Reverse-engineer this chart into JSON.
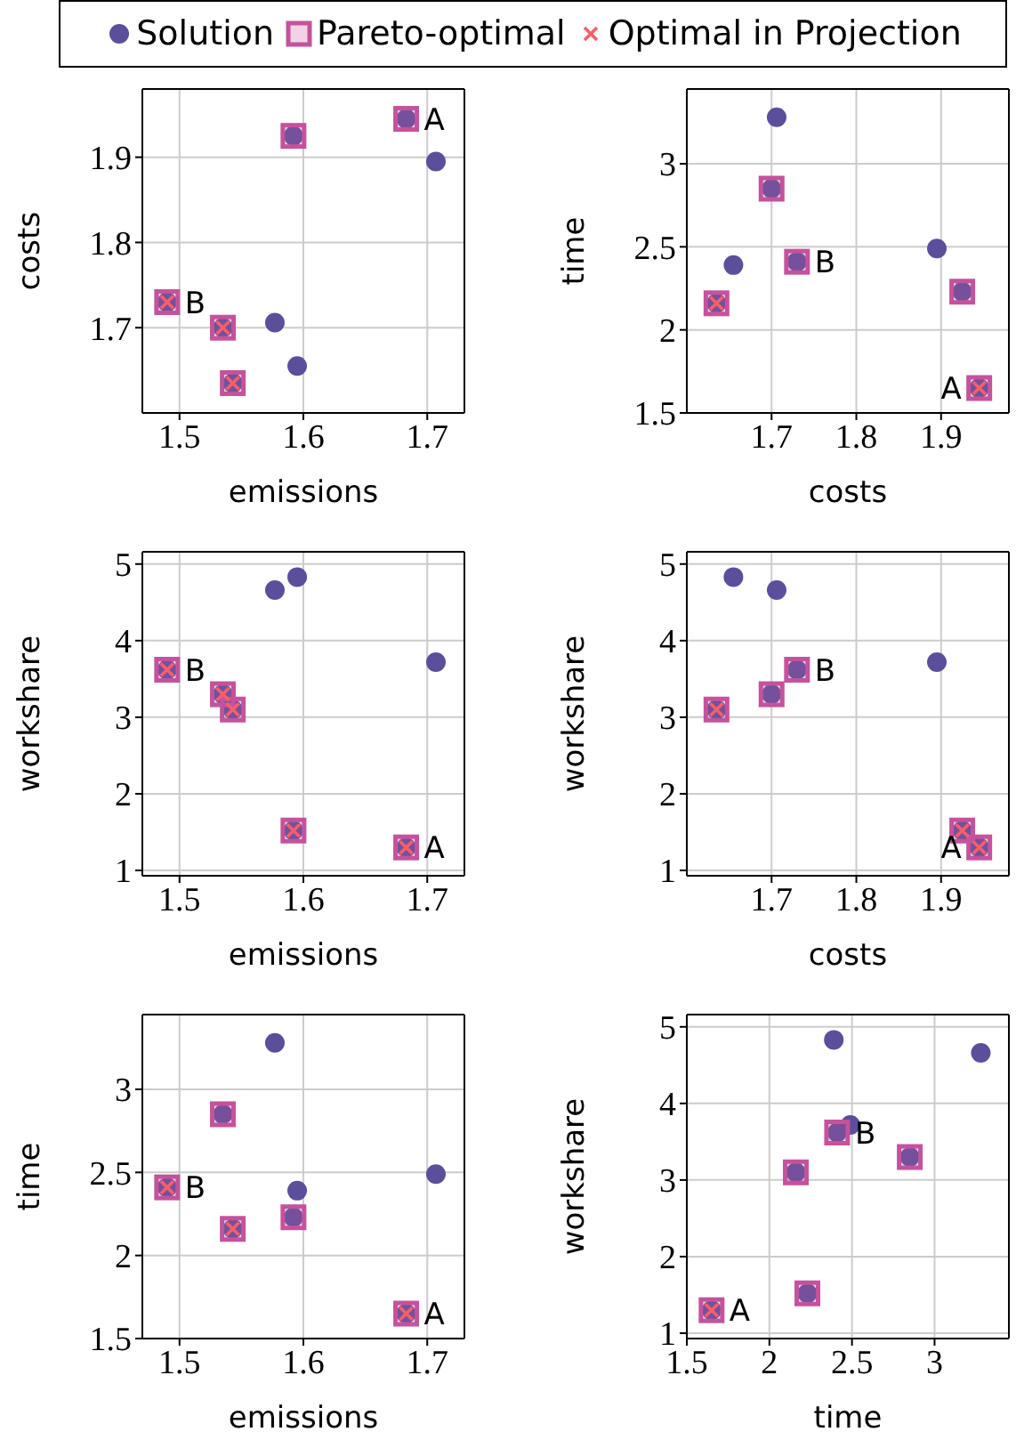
{
  "chart_data": [
    {
      "type": "scatter",
      "xlabel": "emissions",
      "ylabel": "costs",
      "xlim": [
        1.47,
        1.73
      ],
      "xticks": [
        1.5,
        1.6,
        1.7
      ],
      "ylim": [
        1.6,
        1.98
      ],
      "yticks": [
        1.7,
        1.8,
        1.9
      ],
      "grid": true,
      "legend": "top",
      "series": [
        {
          "name": "Solution",
          "color": "#5b4f9b",
          "marker": "circle",
          "x": [
            1.683,
            1.49,
            1.535,
            1.543,
            1.592,
            1.577,
            1.595,
            1.707
          ],
          "values": [
            1.945,
            1.73,
            1.7,
            1.635,
            1.925,
            1.706,
            1.655,
            1.895
          ]
        },
        {
          "name": "Pareto-optimal",
          "color": "#c4529c",
          "marker": "square",
          "x": [
            1.683,
            1.49,
            1.535,
            1.543,
            1.592
          ],
          "values": [
            1.945,
            1.73,
            1.7,
            1.635,
            1.925
          ]
        },
        {
          "name": "Optimal in Projection",
          "color": "#f55f6a",
          "marker": "cross",
          "x": [
            1.49,
            1.535,
            1.543
          ],
          "values": [
            1.73,
            1.7,
            1.635
          ]
        }
      ],
      "annotations": [
        {
          "text": "A",
          "x": 1.683,
          "y": 1.945
        },
        {
          "text": "B",
          "x": 1.49,
          "y": 1.73
        }
      ]
    },
    {
      "type": "scatter",
      "xlabel": "costs",
      "ylabel": "time",
      "xlim": [
        1.6,
        1.98
      ],
      "xticks": [
        1.7,
        1.8,
        1.9
      ],
      "ylim": [
        1.5,
        3.45
      ],
      "yticks": [
        1.5,
        2,
        2.5,
        3
      ],
      "grid": true,
      "series": [
        {
          "color": "#5b4f9b",
          "marker": "circle",
          "x": [
            1.945,
            1.73,
            1.7,
            1.635,
            1.925,
            1.706,
            1.655,
            1.895
          ],
          "values": [
            1.65,
            2.41,
            2.85,
            2.16,
            2.23,
            3.28,
            2.39,
            2.49
          ]
        },
        {
          "color": "#c4529c",
          "marker": "square",
          "x": [
            1.945,
            1.73,
            1.7,
            1.635,
            1.925
          ],
          "values": [
            1.65,
            2.41,
            2.85,
            2.16,
            2.23
          ]
        },
        {
          "color": "#f55f6a",
          "marker": "cross",
          "x": [
            1.635,
            1.945
          ],
          "values": [
            2.16,
            1.65
          ]
        }
      ],
      "annotations": [
        {
          "text": "A",
          "x": 1.945,
          "y": 1.65
        },
        {
          "text": "B",
          "x": 1.73,
          "y": 2.41
        }
      ]
    },
    {
      "type": "scatter",
      "xlabel": "emissions",
      "ylabel": "workshare",
      "xlim": [
        1.47,
        1.73
      ],
      "xticks": [
        1.5,
        1.6,
        1.7
      ],
      "ylim": [
        0.93,
        5.16
      ],
      "yticks": [
        1,
        2,
        3,
        4,
        5
      ],
      "grid": true,
      "series": [
        {
          "color": "#5b4f9b",
          "marker": "circle",
          "x": [
            1.683,
            1.49,
            1.535,
            1.543,
            1.592,
            1.577,
            1.595,
            1.707
          ],
          "values": [
            1.3,
            3.62,
            3.3,
            3.1,
            1.52,
            4.66,
            4.83,
            3.72
          ]
        },
        {
          "color": "#c4529c",
          "marker": "square",
          "x": [
            1.683,
            1.49,
            1.535,
            1.543,
            1.592
          ],
          "values": [
            1.3,
            3.62,
            3.3,
            3.1,
            1.52
          ]
        },
        {
          "color": "#f55f6a",
          "marker": "cross",
          "x": [
            1.683,
            1.49,
            1.535,
            1.543,
            1.592
          ],
          "values": [
            1.3,
            3.62,
            3.3,
            3.1,
            1.52
          ]
        }
      ],
      "annotations": [
        {
          "text": "A",
          "x": 1.683,
          "y": 1.3
        },
        {
          "text": "B",
          "x": 1.49,
          "y": 3.62
        }
      ]
    },
    {
      "type": "scatter",
      "xlabel": "costs",
      "ylabel": "workshare",
      "xlim": [
        1.6,
        1.98
      ],
      "xticks": [
        1.7,
        1.8,
        1.9
      ],
      "ylim": [
        0.93,
        5.16
      ],
      "yticks": [
        1,
        2,
        3,
        4,
        5
      ],
      "grid": true,
      "series": [
        {
          "color": "#5b4f9b",
          "marker": "circle",
          "x": [
            1.945,
            1.73,
            1.7,
            1.635,
            1.925,
            1.706,
            1.655,
            1.895
          ],
          "values": [
            1.3,
            3.62,
            3.3,
            3.1,
            1.52,
            4.66,
            4.83,
            3.72
          ]
        },
        {
          "color": "#c4529c",
          "marker": "square",
          "x": [
            1.945,
            1.73,
            1.7,
            1.635,
            1.925
          ],
          "values": [
            1.3,
            3.62,
            3.3,
            3.1,
            1.52
          ]
        },
        {
          "color": "#f55f6a",
          "marker": "cross",
          "x": [
            1.635,
            1.925,
            1.945
          ],
          "values": [
            3.1,
            1.52,
            1.3
          ]
        }
      ],
      "annotations": [
        {
          "text": "A",
          "x": 1.945,
          "y": 1.3
        },
        {
          "text": "B",
          "x": 1.73,
          "y": 3.62
        }
      ]
    },
    {
      "type": "scatter",
      "xlabel": "emissions",
      "ylabel": "time",
      "xlim": [
        1.47,
        1.73
      ],
      "xticks": [
        1.5,
        1.6,
        1.7
      ],
      "ylim": [
        1.5,
        3.45
      ],
      "yticks": [
        1.5,
        2,
        2.5,
        3
      ],
      "grid": true,
      "series": [
        {
          "color": "#5b4f9b",
          "marker": "circle",
          "x": [
            1.683,
            1.49,
            1.535,
            1.543,
            1.592,
            1.577,
            1.595,
            1.707
          ],
          "values": [
            1.65,
            2.41,
            2.85,
            2.16,
            2.23,
            3.28,
            2.39,
            2.49
          ]
        },
        {
          "color": "#c4529c",
          "marker": "square",
          "x": [
            1.683,
            1.49,
            1.535,
            1.543,
            1.592
          ],
          "values": [
            1.65,
            2.41,
            2.85,
            2.16,
            2.23
          ]
        },
        {
          "color": "#f55f6a",
          "marker": "cross",
          "x": [
            1.49,
            1.543,
            1.683
          ],
          "values": [
            2.41,
            2.16,
            1.65
          ]
        }
      ],
      "annotations": [
        {
          "text": "A",
          "x": 1.683,
          "y": 1.65
        },
        {
          "text": "B",
          "x": 1.49,
          "y": 2.41
        }
      ]
    },
    {
      "type": "scatter",
      "xlabel": "time",
      "ylabel": "workshare",
      "xlim": [
        1.5,
        3.45
      ],
      "xticks": [
        1.5,
        2,
        2.5,
        3
      ],
      "ylim": [
        0.93,
        5.16
      ],
      "yticks": [
        1,
        2,
        3,
        4,
        5
      ],
      "grid": true,
      "series": [
        {
          "color": "#5b4f9b",
          "marker": "circle",
          "x": [
            1.65,
            2.41,
            2.85,
            2.16,
            2.23,
            3.28,
            2.39,
            2.49
          ],
          "values": [
            1.3,
            3.62,
            3.3,
            3.1,
            1.52,
            4.66,
            4.83,
            3.72
          ]
        },
        {
          "color": "#c4529c",
          "marker": "square",
          "x": [
            1.65,
            2.41,
            2.85,
            2.16,
            2.23
          ],
          "values": [
            1.3,
            3.62,
            3.3,
            3.1,
            1.52
          ]
        },
        {
          "color": "#f55f6a",
          "marker": "cross",
          "x": [
            1.65
          ],
          "values": [
            1.3
          ]
        }
      ],
      "annotations": [
        {
          "text": "A",
          "x": 1.65,
          "y": 1.3
        },
        {
          "text": "B",
          "x": 2.41,
          "y": 3.62
        }
      ]
    }
  ]
}
